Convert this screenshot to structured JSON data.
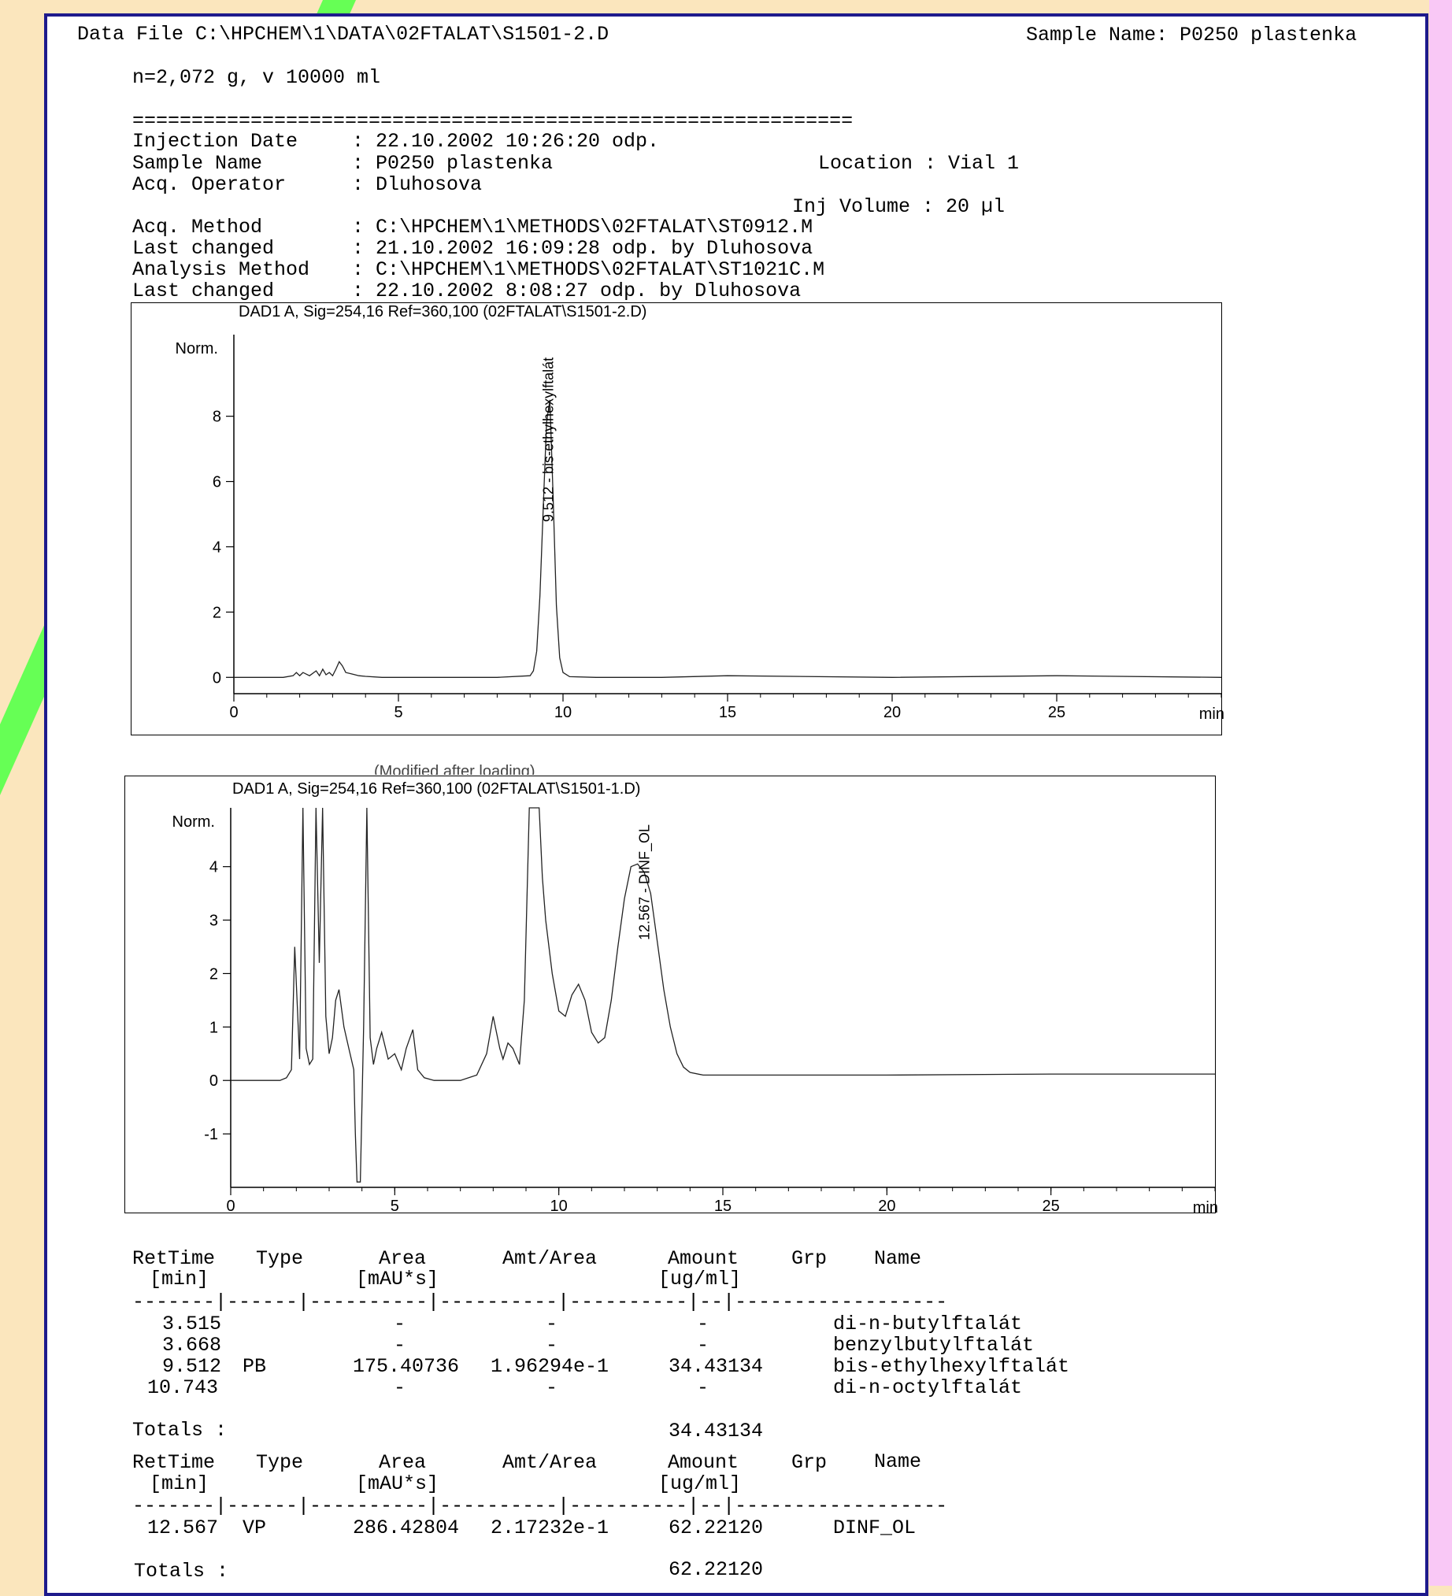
{
  "colors": {
    "background": "#fbe6bd",
    "green_accent": "#66ff55",
    "pink_accent": "#f9c8f6",
    "frame_border": "#1e1a8c"
  },
  "header": {
    "data_file": "Data File C:\\HPCHEM\\1\\DATA\\02FTALAT\\S1501-2.D",
    "sample_name": "Sample Name: P0250 plastenka",
    "note": "n=2,072 g, v 10000 ml",
    "separator": "============================================================="
  },
  "info": [
    {
      "label": "Injection Date",
      "value": ": 22.10.2002 10:26:20 odp."
    },
    {
      "label": "Sample Name",
      "value": ": P0250 plastenka"
    },
    {
      "label": "Acq. Operator",
      "value": ": Dluhosova"
    },
    {
      "label": "Acq. Method",
      "value": ": C:\\HPCHEM\\1\\METHODS\\02FTALAT\\ST0912.M"
    },
    {
      "label": "Last changed",
      "value": ": 21.10.2002 16:09:28 odp. by Dluhosova"
    },
    {
      "label": "Analysis Method",
      "value": ": C:\\HPCHEM\\1\\METHODS\\02FTALAT\\ST1021C.M"
    },
    {
      "label": "Last changed",
      "value": ": 22.10.2002 8:08:27 odp. by Dluhosova"
    }
  ],
  "location": "Location : Vial 1",
  "inj_volume": "Inj Volume : 20 µl",
  "chart_data": [
    {
      "type": "line",
      "title": "DAD1 A, Sig=254,16 Ref=360,100 (02FTALAT\\S1501-2.D)",
      "ylabel": "Norm.",
      "xlabel": "min",
      "xlim": [
        0,
        30
      ],
      "ylim": [
        -0.5,
        10.5
      ],
      "xticks": [
        0,
        5,
        10,
        15,
        20,
        25
      ],
      "yticks": [
        0,
        2,
        4,
        6,
        8
      ],
      "peak_labels": [
        {
          "x": 9.512,
          "text": "9.512 - bis-ethylhexylftalát"
        }
      ],
      "series": [
        {
          "x": [
            0,
            1.5,
            1.8,
            1.9,
            2.0,
            2.1,
            2.3,
            2.5,
            2.6,
            2.7,
            2.8,
            2.9,
            3.0,
            3.1,
            3.2,
            3.3,
            3.4,
            3.6,
            3.8,
            4.0,
            4.5,
            6,
            8,
            9.0,
            9.1,
            9.2,
            9.3,
            9.4,
            9.5,
            9.6,
            9.7,
            9.8,
            9.9,
            10.0,
            10.2,
            11,
            13,
            15,
            20,
            25,
            30
          ],
          "y": [
            0,
            0,
            0.05,
            0.15,
            0.05,
            0.15,
            0.05,
            0.2,
            0.05,
            0.25,
            0.08,
            0.15,
            0.05,
            0.25,
            0.48,
            0.35,
            0.15,
            0.1,
            0.05,
            0.03,
            0,
            0,
            0,
            0.05,
            0.2,
            0.8,
            2.5,
            5.2,
            7.8,
            8.5,
            5.5,
            2.2,
            0.6,
            0.15,
            0.02,
            0,
            0,
            0.05,
            0,
            0.05,
            0
          ]
        }
      ]
    },
    {
      "type": "line",
      "title": "DAD1 A, Sig=254,16 Ref=360,100 (02FTALAT\\S1501-1.D)",
      "ylabel": "Norm.",
      "xlabel": "min",
      "xlim": [
        0,
        30
      ],
      "ylim": [
        -2,
        5.1
      ],
      "xticks": [
        0,
        5,
        10,
        15,
        20,
        25
      ],
      "yticks": [
        -1,
        0,
        1,
        2,
        3,
        4
      ],
      "peak_labels": [
        {
          "x": 12.567,
          "text": "12.567 - DINF_OL"
        }
      ],
      "series": [
        {
          "x": [
            0,
            1.5,
            1.7,
            1.85,
            1.95,
            2.1,
            2.2,
            2.3,
            2.4,
            2.5,
            2.6,
            2.7,
            2.8,
            2.9,
            3.0,
            3.1,
            3.2,
            3.3,
            3.45,
            3.6,
            3.75,
            3.8,
            3.85,
            3.95,
            4.05,
            4.15,
            4.25,
            4.35,
            4.45,
            4.6,
            4.8,
            5.0,
            5.2,
            5.35,
            5.55,
            5.7,
            5.9,
            6.2,
            6.6,
            7.0,
            7.5,
            7.8,
            8.0,
            8.2,
            8.3,
            8.45,
            8.6,
            8.8,
            8.95,
            9.1,
            9.25,
            9.4,
            9.5,
            9.6,
            9.8,
            10.0,
            10.2,
            10.4,
            10.6,
            10.8,
            11.0,
            11.2,
            11.4,
            11.6,
            11.8,
            12.0,
            12.2,
            12.4,
            12.6,
            12.8,
            13.0,
            13.2,
            13.4,
            13.6,
            13.8,
            14.0,
            14.4,
            15,
            16,
            20,
            25,
            30
          ],
          "y": [
            0,
            0,
            0.05,
            0.2,
            2.5,
            0.4,
            5.2,
            0.6,
            0.3,
            0.4,
            5.2,
            2.2,
            5.2,
            1.2,
            0.5,
            0.8,
            1.5,
            1.7,
            1.0,
            0.6,
            0.2,
            -1.0,
            -1.9,
            -1.9,
            1.0,
            5.2,
            0.8,
            0.3,
            0.6,
            0.9,
            0.4,
            0.5,
            0.2,
            0.6,
            0.95,
            0.2,
            0.05,
            0,
            0,
            0,
            0.1,
            0.5,
            1.2,
            0.6,
            0.4,
            0.7,
            0.6,
            0.3,
            1.5,
            5.2,
            5.2,
            5.2,
            3.8,
            3.0,
            2.0,
            1.3,
            1.2,
            1.6,
            1.8,
            1.5,
            0.9,
            0.7,
            0.8,
            1.5,
            2.5,
            3.4,
            4.0,
            4.05,
            3.9,
            3.5,
            2.6,
            1.7,
            1.0,
            0.5,
            0.25,
            0.15,
            0.1,
            0.1,
            0.1,
            0.1,
            0.12,
            0.12
          ]
        }
      ]
    }
  ],
  "overlap_text": "(Modified after loading)",
  "table1": {
    "headers": [
      "RetTime",
      "Type",
      "Area",
      "Amt/Area",
      "Amount",
      "Grp",
      "Name"
    ],
    "units": [
      "[min]",
      "[mAU*s]",
      "[ug/ml]"
    ],
    "divider": "-------|------|----------|----------|----------|--|------------------",
    "rows": [
      {
        "ret": "3.515",
        "type": "",
        "area": "-",
        "amtarea": "-",
        "amount": "-",
        "name": "di-n-butylftalát"
      },
      {
        "ret": "3.668",
        "type": "",
        "area": "-",
        "amtarea": "-",
        "amount": "-",
        "name": "benzylbutylftalát"
      },
      {
        "ret": "9.512",
        "type": "PB",
        "area": "175.40736",
        "amtarea": "1.96294e-1",
        "amount": "34.43134",
        "name": "bis-ethylhexylftalát"
      },
      {
        "ret": "10.743",
        "type": "",
        "area": "-",
        "amtarea": "-",
        "amount": "-",
        "name": "di-n-octylftalát"
      }
    ],
    "totals_label": "Totals :",
    "totals_value": "34.43134"
  },
  "table2": {
    "rows": [
      {
        "ret": "12.567",
        "type": "VP",
        "area": "286.42804",
        "amtarea": "2.17232e-1",
        "amount": "62.22120",
        "name": "DINF_OL"
      }
    ],
    "totals_label": "Totals :",
    "totals_value": "62.22120"
  }
}
